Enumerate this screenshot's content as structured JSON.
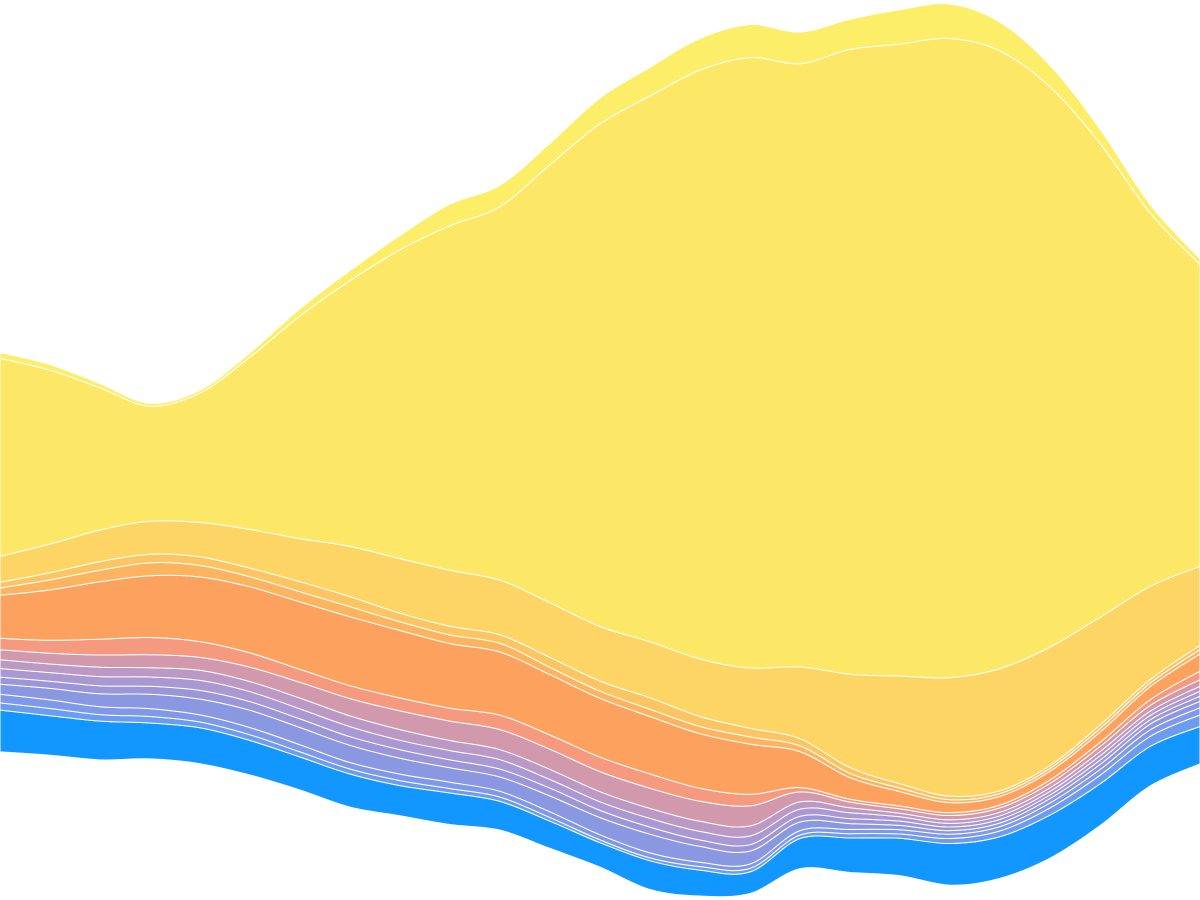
{
  "chart_data": {
    "type": "area",
    "title": "",
    "xlabel": "",
    "ylabel": "",
    "stacked": true,
    "baseline": "wiggle",
    "grid": false,
    "legend": "none",
    "x": [
      0,
      1,
      2,
      3,
      4,
      5,
      6,
      7,
      8,
      9,
      10,
      11,
      12,
      13,
      14,
      15,
      16,
      17,
      18,
      19,
      20,
      21,
      22,
      23,
      24
    ],
    "series": [
      {
        "color": "#1296ff",
        "values": [
          58,
          55,
          54,
          50,
          50,
          48,
          46,
          46,
          42,
          44,
          40,
          38,
          34,
          40,
          36,
          30,
          42,
          48,
          52,
          58,
          58,
          60,
          58,
          55,
          52
        ]
      },
      {
        "color": "#6b9cf0",
        "values": [
          10,
          10,
          9,
          9,
          8,
          8,
          7,
          7,
          7,
          6,
          6,
          5,
          4,
          4,
          5,
          5,
          5,
          6,
          6,
          7,
          8,
          10,
          12,
          14,
          16
        ]
      },
      {
        "color": "#7f99e8",
        "values": [
          12,
          12,
          11,
          11,
          10,
          10,
          10,
          9,
          9,
          9,
          8,
          8,
          7,
          7,
          6,
          6,
          6,
          6,
          6,
          6,
          6,
          7,
          8,
          9,
          10
        ]
      },
      {
        "color": "#8a98e2",
        "values": [
          14,
          16,
          18,
          20,
          22,
          24,
          24,
          24,
          22,
          20,
          20,
          22,
          24,
          26,
          22,
          18,
          12,
          8,
          6,
          5,
          5,
          6,
          7,
          8,
          9
        ]
      },
      {
        "color": "#9a96d8",
        "values": [
          10,
          10,
          11,
          11,
          12,
          12,
          12,
          12,
          12,
          11,
          11,
          11,
          10,
          10,
          9,
          9,
          8,
          7,
          6,
          5,
          5,
          5,
          6,
          6,
          7
        ]
      },
      {
        "color": "#aa98d2",
        "values": [
          12,
          12,
          13,
          13,
          14,
          14,
          14,
          14,
          13,
          13,
          13,
          12,
          12,
          12,
          12,
          12,
          10,
          8,
          6,
          5,
          5,
          5,
          6,
          6,
          7
        ]
      },
      {
        "color": "#bc98c4",
        "values": [
          12,
          12,
          13,
          13,
          14,
          14,
          15,
          15,
          15,
          14,
          14,
          14,
          14,
          14,
          14,
          14,
          10,
          7,
          5,
          5,
          5,
          5,
          6,
          6,
          7
        ]
      },
      {
        "color": "#d298ac",
        "values": [
          14,
          15,
          17,
          18,
          18,
          20,
          22,
          24,
          26,
          27,
          28,
          28,
          28,
          28,
          28,
          28,
          14,
          8,
          6,
          6,
          6,
          6,
          7,
          8,
          9
        ]
      },
      {
        "color": "#f59a7e",
        "values": [
          16,
          18,
          22,
          24,
          22,
          20,
          18,
          18,
          18,
          18,
          20,
          20,
          20,
          20,
          18,
          16,
          6,
          4,
          4,
          4,
          4,
          5,
          6,
          8,
          12
        ]
      },
      {
        "color": "#fca25e",
        "values": [
          60,
          70,
          80,
          86,
          90,
          92,
          94,
          96,
          94,
          90,
          88,
          84,
          82,
          80,
          76,
          70,
          50,
          30,
          20,
          14,
          12,
          12,
          14,
          18,
          24
        ]
      },
      {
        "color": "#fcb460",
        "values": [
          10,
          14,
          16,
          18,
          16,
          14,
          14,
          14,
          12,
          12,
          12,
          10,
          10,
          10,
          10,
          10,
          8,
          6,
          5,
          4,
          4,
          4,
          5,
          5,
          6
        ]
      },
      {
        "color": "#fcc564",
        "values": [
          8,
          10,
          12,
          12,
          12,
          12,
          14,
          14,
          12,
          12,
          12,
          14,
          14,
          16,
          14,
          12,
          10,
          8,
          6,
          5,
          4,
          4,
          5,
          5,
          6
        ]
      },
      {
        "color": "#fdd565",
        "values": [
          36,
          40,
          44,
          46,
          48,
          54,
          60,
          70,
          76,
          78,
          76,
          76,
          76,
          78,
          80,
          84,
          100,
          130,
          150,
          165,
          170,
          165,
          150,
          130,
          110
        ]
      },
      {
        "color": "#fde767",
        "values": [
          276,
          242,
          198,
          160,
          180,
          240,
          310,
          370,
          430,
          480,
          520,
          610,
          700,
          760,
          820,
          850,
          840,
          870,
          880,
          890,
          860,
          780,
          660,
          520,
          420
        ]
      },
      {
        "color": "#fdee6a",
        "values": [
          8,
          8,
          6,
          4,
          4,
          6,
          10,
          14,
          20,
          30,
          30,
          30,
          36,
          40,
          44,
          46,
          44,
          42,
          48,
          48,
          40,
          30,
          20,
          12,
          8
        ]
      }
    ]
  }
}
